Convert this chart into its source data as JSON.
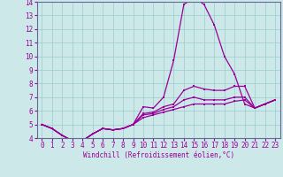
{
  "xlabel": "Windchill (Refroidissement éolien,°C)",
  "x": [
    0,
    1,
    2,
    3,
    4,
    5,
    6,
    7,
    8,
    9,
    10,
    11,
    12,
    13,
    14,
    15,
    16,
    17,
    18,
    19,
    20,
    21,
    22,
    23
  ],
  "line_main": [
    5.0,
    4.7,
    4.2,
    3.8,
    3.8,
    4.3,
    4.7,
    4.6,
    4.7,
    5.0,
    6.3,
    6.2,
    7.0,
    9.7,
    13.8,
    14.3,
    13.8,
    12.3,
    10.0,
    8.7,
    6.5,
    6.2,
    6.5,
    6.8
  ],
  "line_a": [
    5.0,
    4.7,
    4.2,
    3.8,
    3.8,
    4.3,
    4.7,
    4.6,
    4.7,
    5.0,
    5.8,
    5.9,
    6.3,
    6.5,
    7.5,
    7.8,
    7.6,
    7.5,
    7.5,
    7.8,
    7.8,
    6.2,
    6.5,
    6.8
  ],
  "line_b": [
    5.0,
    4.7,
    4.2,
    3.8,
    3.8,
    4.3,
    4.7,
    4.6,
    4.7,
    5.0,
    5.7,
    5.8,
    6.1,
    6.3,
    6.8,
    7.0,
    6.8,
    6.8,
    6.8,
    7.0,
    7.0,
    6.2,
    6.5,
    6.8
  ],
  "line_c": [
    5.0,
    4.7,
    4.2,
    3.8,
    3.8,
    4.3,
    4.7,
    4.6,
    4.7,
    5.0,
    5.5,
    5.7,
    5.9,
    6.1,
    6.3,
    6.5,
    6.5,
    6.5,
    6.5,
    6.7,
    6.8,
    6.2,
    6.5,
    6.8
  ],
  "line_color": "#990099",
  "bg_color": "#cce8e8",
  "grid_color": "#99cccc",
  "axis_color": "#666699",
  "ylim": [
    4,
    14
  ],
  "xlim": [
    -0.5,
    23.5
  ],
  "yticks": [
    4,
    5,
    6,
    7,
    8,
    9,
    10,
    11,
    12,
    13,
    14
  ],
  "xticks": [
    0,
    1,
    2,
    3,
    4,
    5,
    6,
    7,
    8,
    9,
    10,
    11,
    12,
    13,
    14,
    15,
    16,
    17,
    18,
    19,
    20,
    21,
    22,
    23
  ],
  "xlabel_fontsize": 5.5,
  "tick_fontsize": 5.5
}
